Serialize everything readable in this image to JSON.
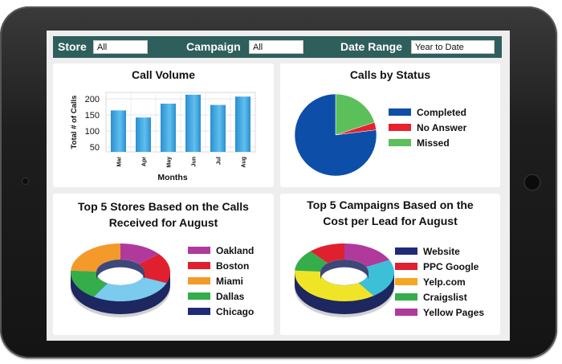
{
  "filters": {
    "store_label": "Store",
    "store_value": "All",
    "campaign_label": "Campaign",
    "campaign_value": "All",
    "date_range_label": "Date Range",
    "date_range_value": "Year to Date"
  },
  "call_volume": {
    "title": "Call Volume",
    "chart_data": {
      "type": "bar",
      "categories": [
        "Mar",
        "Apr",
        "May",
        "Jun",
        "Jul",
        "Aug"
      ],
      "values": [
        164,
        142,
        185,
        213,
        181,
        207
      ],
      "xlabel": "Months",
      "ylabel": "Total # of Calls",
      "yticks": [
        50,
        100,
        150,
        200
      ],
      "ylim": [
        35,
        220
      ],
      "colors": [
        "#2a8fd0",
        "#5fc0ee"
      ]
    }
  },
  "calls_by_status": {
    "title": "Calls by Status",
    "chart_data": {
      "type": "pie",
      "labels": [
        "Completed",
        "No Answer",
        "Missed"
      ],
      "values": [
        77,
        3,
        20
      ],
      "colors": [
        "#0d4fa8",
        "#e8202f",
        "#5bbf5a"
      ]
    }
  },
  "top_stores": {
    "title_line1": "Top 5 Stores Based on the Calls",
    "title_line2": "Received for August",
    "chart_data": {
      "type": "pie",
      "labels": [
        "Oakland",
        "Boston",
        "Miami",
        "Dallas",
        "Chicago"
      ],
      "values": [
        14,
        17,
        28,
        17,
        24
      ],
      "colors": [
        "#b03a9c",
        "#e0202e",
        "#f39a2a",
        "#35ad4b",
        "#1f2a78"
      ],
      "ring_colors": [
        "#b03a9c",
        "#e0202e",
        "#7bcbee",
        "#35ad4b",
        "#f39a2a"
      ]
    }
  },
  "top_campaigns": {
    "title_line1": "Top 5 Campaigns Based on the",
    "title_line2": "Cost per Lead for August",
    "chart_data": {
      "type": "pie",
      "labels": [
        "Website",
        "PPC Google",
        "Yelp.com",
        "Craigslist",
        "Yellow Pages"
      ],
      "values": [
        18,
        22,
        36,
        12,
        12
      ],
      "colors": [
        "#1f2a78",
        "#e0202e",
        "#f6a623",
        "#35ad4b",
        "#b03a9c"
      ],
      "ring_colors": [
        "#b03a9c",
        "#3cc0d8",
        "#f0e427",
        "#35ad4b",
        "#e0202e"
      ]
    }
  }
}
